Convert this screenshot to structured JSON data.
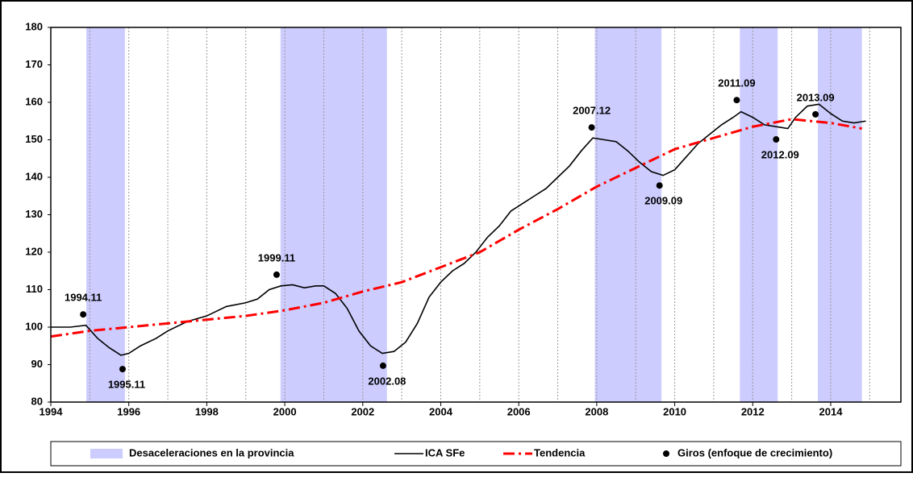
{
  "chart_data": {
    "type": "line",
    "xlim": [
      1994,
      2015.8
    ],
    "ylim": [
      80,
      180
    ],
    "xticks": [
      1994,
      1996,
      1998,
      2000,
      2002,
      2004,
      2006,
      2008,
      2010,
      2012,
      2014
    ],
    "x_minor_ticks": [
      1995,
      1997,
      1999,
      2001,
      2003,
      2005,
      2007,
      2009,
      2011,
      2013,
      2015
    ],
    "yticks": [
      80,
      90,
      100,
      110,
      120,
      130,
      140,
      150,
      160,
      170,
      180
    ],
    "series": [
      {
        "name": "Desaceleraciones en la provincia",
        "type": "band",
        "color": "#ccccff",
        "ranges": [
          [
            1994.91,
            1995.9
          ],
          [
            1999.89,
            2002.62
          ],
          [
            2007.95,
            2009.66
          ],
          [
            2011.67,
            2012.64
          ],
          [
            2013.67,
            2014.8
          ]
        ]
      },
      {
        "name": "ICA SFe",
        "type": "line",
        "color": "#000000",
        "x": [
          1994.0,
          1994.5,
          1994.9,
          1995.2,
          1995.5,
          1995.8,
          1996.0,
          1996.3,
          1996.7,
          1997.0,
          1997.5,
          1998.0,
          1998.5,
          1999.0,
          1999.3,
          1999.6,
          1999.9,
          2000.2,
          2000.5,
          2000.8,
          2001.0,
          2001.3,
          2001.6,
          2001.9,
          2002.2,
          2002.5,
          2002.8,
          2003.1,
          2003.4,
          2003.7,
          2004.0,
          2004.3,
          2004.6,
          2004.9,
          2005.2,
          2005.5,
          2005.8,
          2006.1,
          2006.4,
          2006.7,
          2007.0,
          2007.3,
          2007.6,
          2007.9,
          2008.2,
          2008.5,
          2008.8,
          2009.1,
          2009.4,
          2009.7,
          2010.0,
          2010.3,
          2010.6,
          2010.9,
          2011.2,
          2011.5,
          2011.7,
          2012.0,
          2012.3,
          2012.6,
          2012.9,
          2013.1,
          2013.4,
          2013.7,
          2014.0,
          2014.3,
          2014.6,
          2014.9
        ],
        "values": [
          100,
          100,
          100.5,
          97,
          94.5,
          92.5,
          93,
          95,
          97,
          99,
          101.5,
          103,
          105.5,
          106.5,
          107.5,
          110,
          111,
          111.3,
          110.5,
          111,
          111,
          109,
          105,
          99,
          95,
          93,
          93.5,
          96,
          101,
          108,
          112,
          115,
          117,
          120,
          124,
          127,
          131,
          133,
          135,
          137,
          140,
          143,
          147,
          150.5,
          150,
          149.5,
          147,
          144,
          141.5,
          140.5,
          142,
          145.5,
          149,
          151.5,
          154,
          156,
          157.5,
          156,
          154,
          153.5,
          153,
          156,
          159,
          159.5,
          157,
          155,
          154.5,
          155
        ]
      },
      {
        "name": "Tendencia",
        "type": "trend",
        "color": "#ff0000",
        "x": [
          1994,
          1995,
          1996,
          1997,
          1998,
          1999,
          2000,
          2001,
          2002,
          2003,
          2004,
          2005,
          2006,
          2007,
          2008,
          2009,
          2010,
          2011,
          2012,
          2013,
          2014,
          2014.8
        ],
        "values": [
          97.5,
          99,
          100,
          101,
          102,
          103,
          104.5,
          106.5,
          109.5,
          112,
          116,
          120,
          126,
          131.5,
          137.5,
          142.5,
          147.5,
          150.5,
          153.5,
          155.5,
          154.5,
          153
        ]
      },
      {
        "name": "Giros (enfoque de crecimiento)",
        "type": "points",
        "color": "#000000",
        "x": [
          1994.83,
          1995.84,
          1999.79,
          2002.52,
          2007.87,
          2009.61,
          2011.59,
          2012.6,
          2013.61
        ],
        "values": [
          103.4,
          88.8,
          114,
          89.7,
          153.3,
          137.8,
          160.6,
          150.1,
          156.8
        ],
        "labels": [
          "1994.11",
          "1995.11",
          "1999.11",
          "2002.08",
          "2007.12",
          "2009.09",
          "2011.09",
          "2012.09",
          "2013.09"
        ]
      }
    ]
  }
}
